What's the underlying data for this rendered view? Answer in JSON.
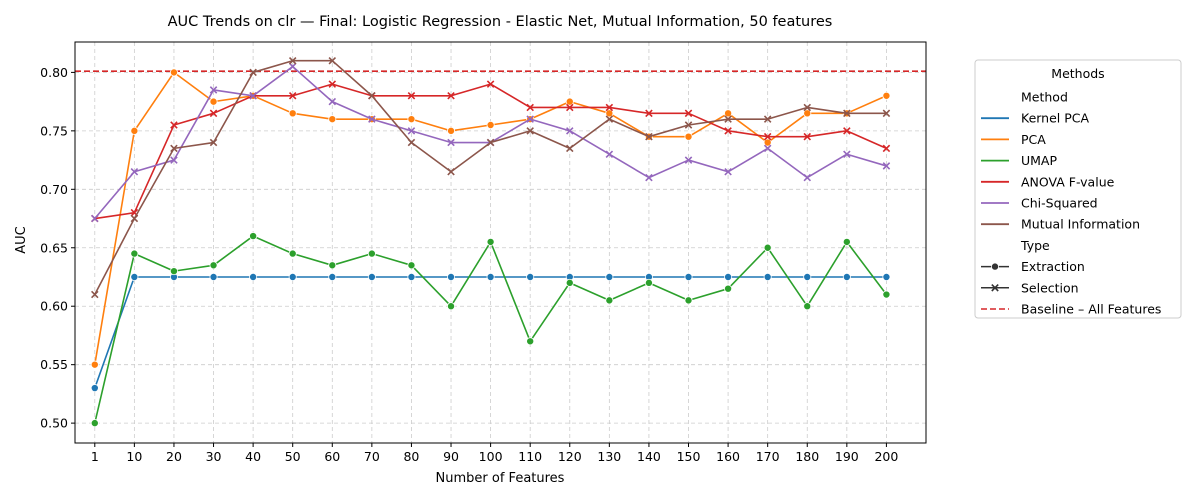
{
  "chart_data": {
    "type": "line",
    "title": "AUC Trends on clr — Final: Logistic Regression - Elastic Net, Mutual Information, 50 features",
    "xlabel": "Number of Features",
    "ylabel": "AUC",
    "categories": [
      "1",
      "10",
      "20",
      "30",
      "40",
      "50",
      "60",
      "70",
      "80",
      "90",
      "100",
      "110",
      "120",
      "130",
      "140",
      "150",
      "160",
      "170",
      "180",
      "190",
      "200"
    ],
    "ylim": [
      0.483,
      0.826
    ],
    "yticks": [
      "0.50",
      "0.55",
      "0.60",
      "0.65",
      "0.70",
      "0.75",
      "0.80"
    ],
    "grid": true,
    "legend": {
      "title": "Methods",
      "placement": "outside-right",
      "method_header": "Method",
      "type_header": "Type",
      "type_entries": [
        {
          "label": "Extraction",
          "marker": "circle"
        },
        {
          "label": "Selection",
          "marker": "x"
        }
      ],
      "baseline_label": "Baseline – All Features"
    },
    "baseline": {
      "value": 0.801,
      "color": "#d62728"
    },
    "series": [
      {
        "name": "Kernel PCA",
        "type": "Extraction",
        "color": "#1f77b4",
        "values": [
          0.53,
          0.625,
          0.625,
          0.625,
          0.625,
          0.625,
          0.625,
          0.625,
          0.625,
          0.625,
          0.625,
          0.625,
          0.625,
          0.625,
          0.625,
          0.625,
          0.625,
          0.625,
          0.625,
          0.625,
          0.625
        ]
      },
      {
        "name": "PCA",
        "type": "Extraction",
        "color": "#ff7f0e",
        "values": [
          0.55,
          0.75,
          0.8,
          0.775,
          0.78,
          0.765,
          0.76,
          0.76,
          0.76,
          0.75,
          0.755,
          0.76,
          0.775,
          0.765,
          0.745,
          0.745,
          0.765,
          0.74,
          0.765,
          0.765,
          0.78
        ]
      },
      {
        "name": "UMAP",
        "type": "Extraction",
        "color": "#2ca02c",
        "values": [
          0.5,
          0.645,
          0.63,
          0.635,
          0.66,
          0.645,
          0.635,
          0.645,
          0.635,
          0.6,
          0.655,
          0.57,
          0.62,
          0.605,
          0.62,
          0.605,
          0.615,
          0.65,
          0.6,
          0.655,
          0.61
        ]
      },
      {
        "name": "ANOVA F-value",
        "type": "Selection",
        "color": "#d62728",
        "values": [
          0.675,
          0.68,
          0.755,
          0.765,
          0.78,
          0.78,
          0.79,
          0.78,
          0.78,
          0.78,
          0.79,
          0.77,
          0.77,
          0.77,
          0.765,
          0.765,
          0.75,
          0.745,
          0.745,
          0.75,
          0.735
        ]
      },
      {
        "name": "Chi-Squared",
        "type": "Selection",
        "color": "#9467bd",
        "values": [
          0.675,
          0.715,
          0.725,
          0.785,
          0.78,
          0.805,
          0.775,
          0.76,
          0.75,
          0.74,
          0.74,
          0.76,
          0.75,
          0.73,
          0.71,
          0.725,
          0.715,
          0.735,
          0.71,
          0.73,
          0.72
        ]
      },
      {
        "name": "Mutual Information",
        "type": "Selection",
        "color": "#8c564b",
        "values": [
          0.61,
          0.675,
          0.735,
          0.74,
          0.8,
          0.81,
          0.81,
          0.78,
          0.74,
          0.715,
          0.74,
          0.75,
          0.735,
          0.76,
          0.745,
          0.755,
          0.76,
          0.76,
          0.77,
          0.765,
          0.765
        ]
      }
    ]
  }
}
